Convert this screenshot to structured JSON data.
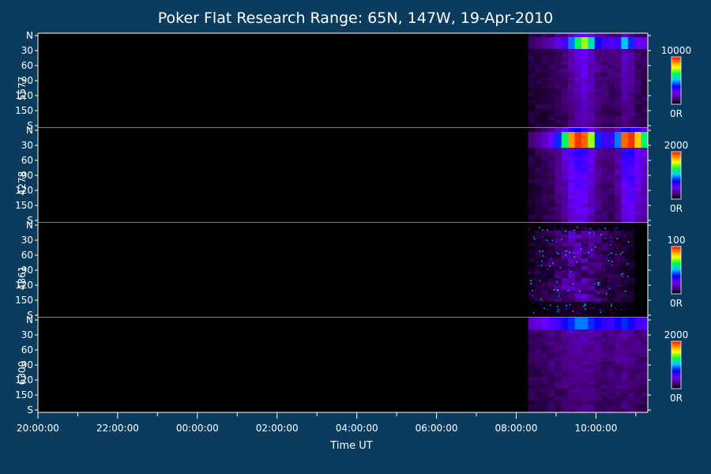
{
  "chart_data": {
    "type": "heatmap",
    "title": "Poker Flat Research Range: 65N, 147W, 19-Apr-2010",
    "xlabel": "Time UT",
    "x_ticks": [
      "20:00:00",
      "22:00:00",
      "00:00:00",
      "02:00:00",
      "04:00:00",
      "06:00:00",
      "08:00:00",
      "10:00:00"
    ],
    "x_range_hours": [
      20.0,
      35.3
    ],
    "data_start_hour": 32.3,
    "y_ticks": [
      "N",
      "30",
      "60",
      "90",
      "120",
      "150",
      "S"
    ],
    "y_range_deg": [
      0,
      180
    ],
    "colormap": [
      "#000000",
      "#4b0082",
      "#6a00ff",
      "#0000ff",
      "#00c8ff",
      "#00ff40",
      "#ffff00",
      "#ff8000",
      "#ff0000"
    ],
    "panels": [
      {
        "label": "5577",
        "scale_max": "10000",
        "scale_min": "0R",
        "max_value": 10000,
        "intensity_profile": [
          0.1,
          0.12,
          0.15,
          0.18,
          0.22,
          0.3,
          0.45,
          0.6,
          0.7,
          0.55,
          0.35,
          0.3,
          0.28,
          0.3,
          0.5,
          0.4,
          0.25,
          0.22
        ],
        "peak_band_deg": [
          5,
          30
        ]
      },
      {
        "label": "4278",
        "scale_max": "2000",
        "scale_min": "0R",
        "max_value": 2000,
        "intensity_profile": [
          0.12,
          0.15,
          0.2,
          0.25,
          0.4,
          0.6,
          0.85,
          0.95,
          0.9,
          0.7,
          0.4,
          0.3,
          0.3,
          0.45,
          0.9,
          0.95,
          0.8,
          0.6
        ],
        "peak_band_deg": [
          5,
          35
        ]
      },
      {
        "label": "4861",
        "scale_max": "100",
        "scale_min": "0R",
        "max_value": 100,
        "intensity_profile": [
          0.05,
          0.06,
          0.08,
          0.1,
          0.12,
          0.15,
          0.18,
          0.2,
          0.18,
          0.15,
          0.12,
          0.1,
          0.08,
          0.08,
          0.06,
          0.05,
          0.0,
          0.0
        ],
        "peak_band_deg": [
          20,
          90
        ]
      },
      {
        "label": "6300",
        "scale_max": "2000",
        "scale_min": "0R",
        "max_value": 2000,
        "intensity_profile": [
          0.2,
          0.22,
          0.25,
          0.28,
          0.3,
          0.35,
          0.4,
          0.45,
          0.45,
          0.4,
          0.35,
          0.32,
          0.3,
          0.35,
          0.4,
          0.35,
          0.3,
          0.28
        ],
        "peak_band_deg": [
          0,
          20
        ]
      }
    ]
  }
}
